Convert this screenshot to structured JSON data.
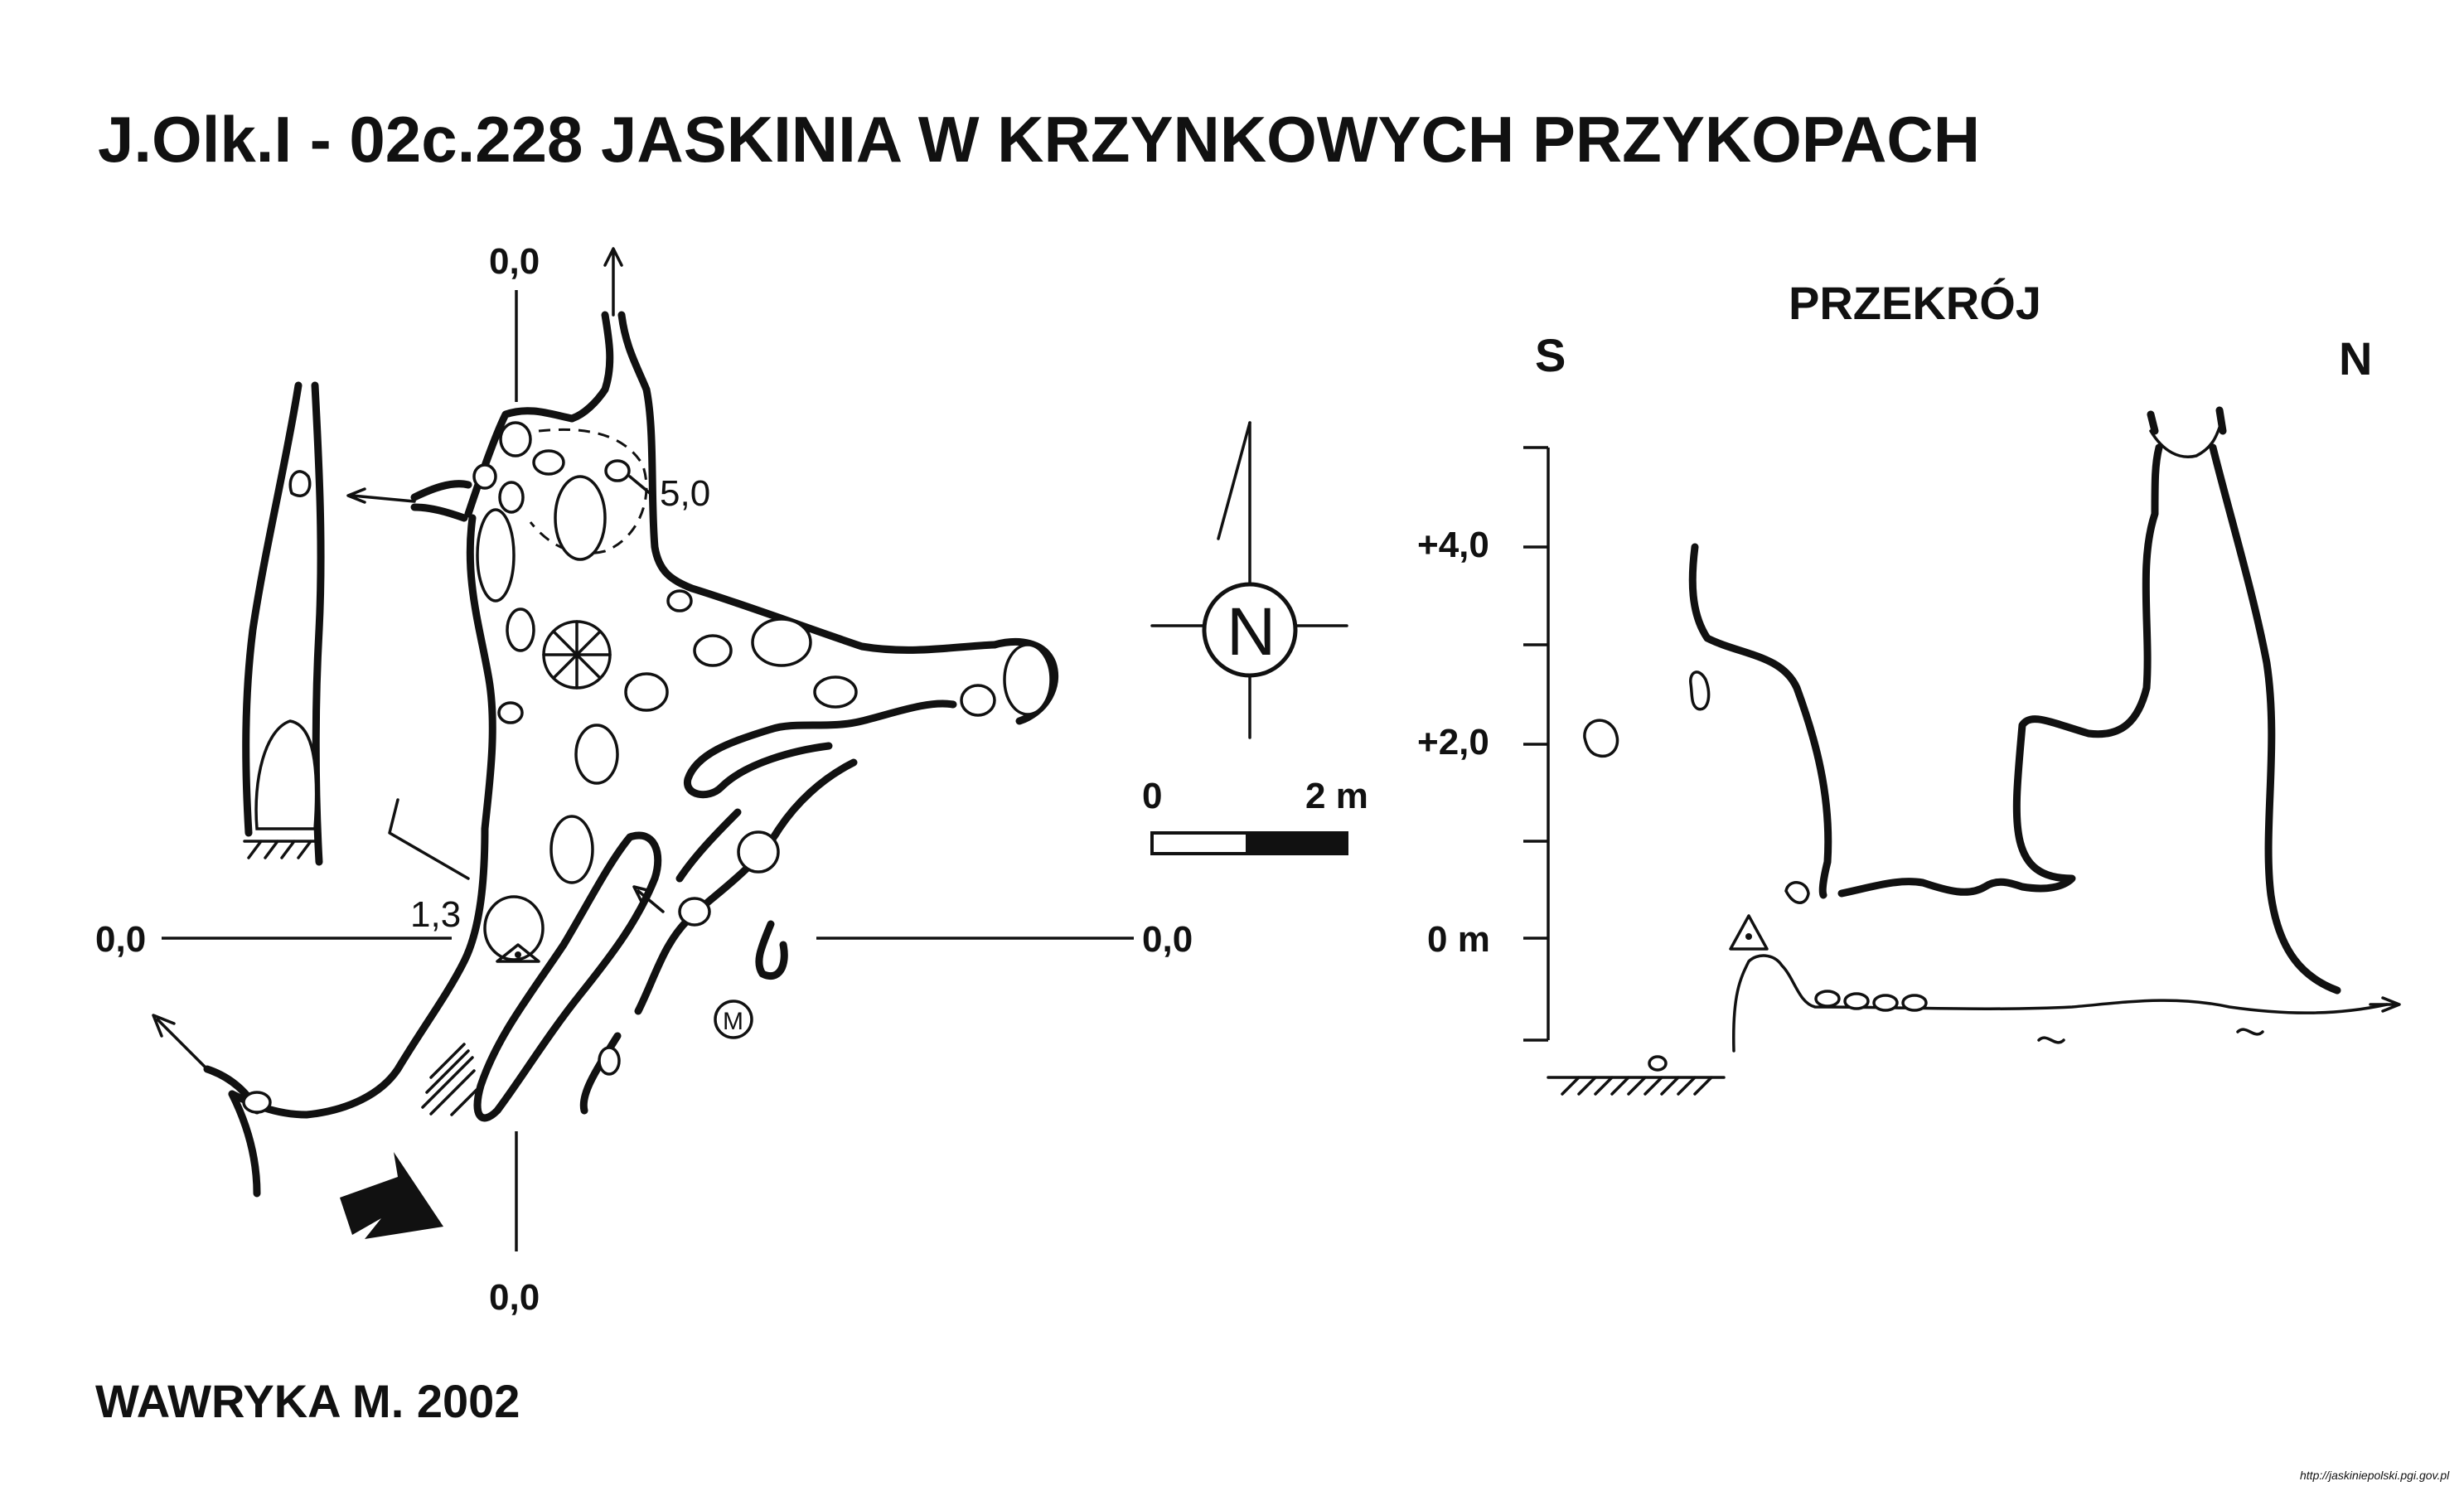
{
  "title": "J.Olk.I - 02c.228  JASKINIA W KRZYNKOWYCH PRZYKOPACH",
  "author": "WAWRYKA M. 2002",
  "source_url": "http://jaskiniepolski.pgi.gov.pl",
  "plan": {
    "ref_label_top": "0,0",
    "ref_label_bottom": "0,0",
    "ref_label_left": "0,0",
    "ref_label_right": "0,0",
    "height_label_top": "5,0",
    "height_label_left": "1,3",
    "marker_label": "M",
    "north_label": "N",
    "scale_start": "0",
    "scale_end": "2 m"
  },
  "section": {
    "title": "PRZEKRÓJ",
    "left_direction": "S",
    "right_direction": "N",
    "axis_labels": [
      "+4,0",
      "+2,0",
      "0 m"
    ]
  }
}
